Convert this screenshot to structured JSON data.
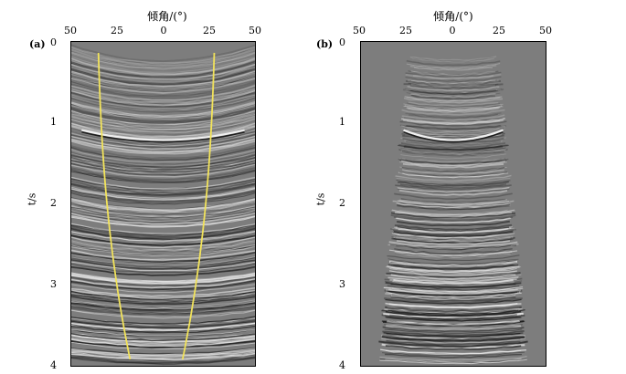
{
  "panels": [
    {
      "label": "(a)",
      "top_axis_title": "倾角/(°)",
      "x_ticks": [
        "50",
        "25",
        "0",
        "25",
        "50"
      ],
      "y_ticks": [
        "0",
        "1",
        "2",
        "3",
        "4"
      ],
      "y_label": "t/s",
      "has_mute_curve": true,
      "mute_curve_color": "#f2e35a"
    },
    {
      "label": "(b)",
      "top_axis_title": "倾角/(°)",
      "x_ticks": [
        "50",
        "25",
        "0",
        "25",
        "50"
      ],
      "y_ticks": [
        "0",
        "1",
        "2",
        "3",
        "4"
      ],
      "y_label": "t/s",
      "has_mute_curve": false
    }
  ],
  "colors": {
    "background_gray": "#7d7d7d",
    "event_light": "#f0f0f0",
    "event_dark": "#1a1a1a"
  }
}
